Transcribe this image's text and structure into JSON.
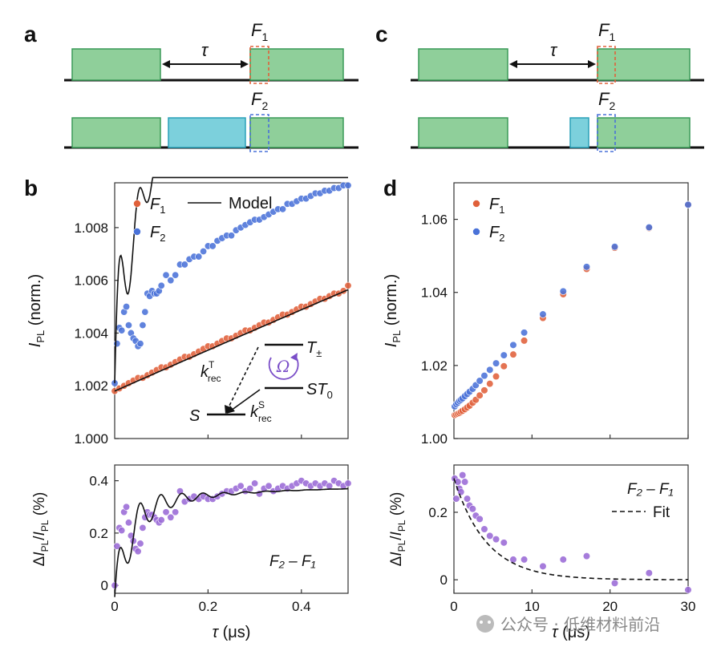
{
  "figure": {
    "panel_a": "a",
    "panel_b": "b",
    "panel_c": "c",
    "panel_d": "d",
    "watermark": "公众号 · 低维材料前沿"
  },
  "colors": {
    "laser_green": "#8fcf9a",
    "laser_green_edge": "#3a9a58",
    "mw_cyan": "#7cd0dc",
    "mw_cyan_edge": "#2aa0b8",
    "f1_red": "#e0603a",
    "f2_blue": "#4a72d8",
    "diff_purple": "#9a6ad6",
    "omega_purple": "#7a4ec8"
  },
  "schematic_a": {
    "tau_label": "τ",
    "f1_label": "F",
    "f1_sub": "1",
    "f2_label": "F",
    "f2_sub": "2"
  },
  "schematic_c": {
    "tau_label": "τ",
    "f1_label": "F",
    "f1_sub": "1",
    "f2_label": "F",
    "f2_sub": "2"
  },
  "inset_b": {
    "t_label": "T",
    "t_sub": "±",
    "st0_label": "ST",
    "st0_sub": "0",
    "s_label": "S",
    "omega_label": "Ω",
    "krec_t": "k",
    "krec_t_sup": "T",
    "krec_t_sub": "rec",
    "krec_s": "k",
    "krec_s_sup": "S",
    "krec_s_sub": "rec"
  },
  "chart_data": [
    {
      "id": "b_top",
      "type": "scatter",
      "ylabel_main": "I",
      "ylabel_sub": "PL",
      "ylabel_rest": " (norm.)",
      "xlim": [
        0,
        0.5
      ],
      "ylim": [
        1.0,
        1.0097
      ],
      "yticks": [
        1.0,
        1.002,
        1.004,
        1.006,
        1.008
      ],
      "ytick_labels": [
        "1.000",
        "1.002",
        "1.004",
        "1.006",
        "1.008"
      ],
      "legend": [
        {
          "name": "F",
          "sub": "1",
          "kind": "marker",
          "color": "#e0603a"
        },
        {
          "name": "F",
          "sub": "2",
          "kind": "marker",
          "color": "#4a72d8"
        },
        {
          "name": "Model",
          "kind": "line",
          "color": "#111111"
        }
      ],
      "series": [
        {
          "name": "F1",
          "color": "#e0603a",
          "x": [
            0.0,
            0.01,
            0.02,
            0.03,
            0.04,
            0.05,
            0.06,
            0.07,
            0.08,
            0.09,
            0.1,
            0.11,
            0.12,
            0.13,
            0.14,
            0.15,
            0.16,
            0.17,
            0.18,
            0.19,
            0.2,
            0.21,
            0.22,
            0.23,
            0.24,
            0.25,
            0.26,
            0.27,
            0.28,
            0.29,
            0.3,
            0.31,
            0.32,
            0.33,
            0.34,
            0.35,
            0.36,
            0.37,
            0.38,
            0.39,
            0.4,
            0.41,
            0.42,
            0.43,
            0.44,
            0.45,
            0.46,
            0.47,
            0.48,
            0.49,
            0.5
          ],
          "y": [
            1.0018,
            1.0019,
            1.002,
            1.0021,
            1.0022,
            1.0023,
            1.0023,
            1.0024,
            1.0025,
            1.0026,
            1.0027,
            1.0027,
            1.0028,
            1.0029,
            1.003,
            1.0031,
            1.0031,
            1.0032,
            1.0033,
            1.0034,
            1.0035,
            1.0035,
            1.0036,
            1.0037,
            1.0038,
            1.0038,
            1.0039,
            1.004,
            1.0041,
            1.0041,
            1.0042,
            1.0043,
            1.0044,
            1.0044,
            1.0045,
            1.0046,
            1.0047,
            1.0047,
            1.0048,
            1.0049,
            1.005,
            1.005,
            1.0051,
            1.0052,
            1.0053,
            1.0053,
            1.0054,
            1.0055,
            1.0055,
            1.0056,
            1.0058
          ]
        },
        {
          "name": "F2",
          "color": "#4a72d8",
          "x": [
            0.0,
            0.005,
            0.01,
            0.015,
            0.02,
            0.025,
            0.03,
            0.035,
            0.04,
            0.045,
            0.05,
            0.055,
            0.06,
            0.065,
            0.07,
            0.075,
            0.08,
            0.085,
            0.09,
            0.095,
            0.1,
            0.11,
            0.12,
            0.13,
            0.14,
            0.15,
            0.16,
            0.17,
            0.18,
            0.19,
            0.2,
            0.21,
            0.22,
            0.23,
            0.24,
            0.25,
            0.26,
            0.27,
            0.28,
            0.29,
            0.3,
            0.31,
            0.32,
            0.33,
            0.34,
            0.35,
            0.36,
            0.37,
            0.38,
            0.39,
            0.4,
            0.41,
            0.42,
            0.43,
            0.44,
            0.45,
            0.46,
            0.47,
            0.48,
            0.49,
            0.5
          ],
          "y": [
            1.0021,
            1.0036,
            1.0042,
            1.0041,
            1.0048,
            1.005,
            1.0043,
            1.004,
            1.0038,
            1.0037,
            1.0035,
            1.0036,
            1.0043,
            1.0048,
            1.0055,
            1.0054,
            1.0056,
            1.0055,
            1.0055,
            1.0056,
            1.0058,
            1.0062,
            1.006,
            1.0062,
            1.0066,
            1.0066,
            1.0068,
            1.0069,
            1.0069,
            1.0071,
            1.0073,
            1.0073,
            1.0075,
            1.0076,
            1.0077,
            1.0077,
            1.0079,
            1.008,
            1.0081,
            1.0082,
            1.0083,
            1.0083,
            1.0084,
            1.0085,
            1.0086,
            1.0087,
            1.0087,
            1.0089,
            1.0089,
            1.009,
            1.0091,
            1.0091,
            1.0092,
            1.0093,
            1.0093,
            1.0094,
            1.0094,
            1.0095,
            1.0095,
            1.0096,
            1.0096
          ]
        }
      ]
    },
    {
      "id": "b_bottom",
      "type": "scatter",
      "ylabel": "ΔI_PL/I_PL (%)",
      "xlabel_main": "τ",
      "xlabel_rest": " (μs)",
      "xlim": [
        0,
        0.5
      ],
      "ylim": [
        -0.03,
        0.46
      ],
      "xticks": [
        0,
        0.2,
        0.4
      ],
      "xtick_labels": [
        "0",
        "0.2",
        "0.4"
      ],
      "yticks": [
        0,
        0.2,
        0.4
      ],
      "ytick_labels": [
        "0",
        "0.2",
        "0.4"
      ],
      "annotation": "F₂ – F₁",
      "series": [
        {
          "name": "F2 - F1",
          "color": "#9a6ad6",
          "x": [
            0.0,
            0.005,
            0.01,
            0.015,
            0.02,
            0.025,
            0.03,
            0.035,
            0.04,
            0.045,
            0.05,
            0.055,
            0.06,
            0.065,
            0.07,
            0.075,
            0.08,
            0.085,
            0.09,
            0.095,
            0.1,
            0.11,
            0.12,
            0.13,
            0.14,
            0.15,
            0.16,
            0.17,
            0.18,
            0.19,
            0.2,
            0.21,
            0.22,
            0.23,
            0.24,
            0.25,
            0.26,
            0.27,
            0.28,
            0.29,
            0.3,
            0.31,
            0.32,
            0.33,
            0.34,
            0.35,
            0.36,
            0.37,
            0.38,
            0.39,
            0.4,
            0.41,
            0.42,
            0.43,
            0.44,
            0.45,
            0.46,
            0.47,
            0.48,
            0.49,
            0.5
          ],
          "y": [
            0.0,
            0.15,
            0.22,
            0.21,
            0.28,
            0.3,
            0.24,
            0.19,
            0.17,
            0.14,
            0.13,
            0.16,
            0.22,
            0.26,
            0.28,
            0.27,
            0.27,
            0.26,
            0.25,
            0.24,
            0.25,
            0.28,
            0.26,
            0.28,
            0.36,
            0.32,
            0.33,
            0.34,
            0.33,
            0.34,
            0.33,
            0.33,
            0.34,
            0.35,
            0.36,
            0.36,
            0.37,
            0.38,
            0.36,
            0.37,
            0.39,
            0.35,
            0.37,
            0.38,
            0.36,
            0.37,
            0.38,
            0.37,
            0.38,
            0.39,
            0.4,
            0.39,
            0.38,
            0.39,
            0.38,
            0.39,
            0.38,
            0.4,
            0.39,
            0.38,
            0.39
          ]
        }
      ]
    },
    {
      "id": "d_top",
      "type": "scatter",
      "ylabel_main": "I",
      "ylabel_sub": "PL",
      "ylabel_rest": " (norm.)",
      "xlim": [
        0,
        30
      ],
      "ylim": [
        1.0,
        1.07
      ],
      "yticks": [
        1.0,
        1.02,
        1.04,
        1.06
      ],
      "ytick_labels": [
        "1.00",
        "1.02",
        "1.04",
        "1.06"
      ],
      "legend": [
        {
          "name": "F",
          "sub": "1",
          "kind": "marker",
          "color": "#e0603a"
        },
        {
          "name": "F",
          "sub": "2",
          "kind": "marker",
          "color": "#4a72d8"
        }
      ],
      "series": [
        {
          "name": "F1",
          "color": "#e0603a",
          "x": [
            0.1,
            0.3,
            0.5,
            0.7,
            0.9,
            1.1,
            1.4,
            1.7,
            2.0,
            2.4,
            2.8,
            3.3,
            3.9,
            4.6,
            5.4,
            6.4,
            7.6,
            9.0,
            11.4,
            14.0,
            17.0,
            20.6,
            25.0,
            30.0
          ],
          "y": [
            1.0064,
            1.0066,
            1.0068,
            1.007,
            1.0073,
            1.0076,
            1.008,
            1.0085,
            1.009,
            1.0098,
            1.0106,
            1.0118,
            1.0132,
            1.015,
            1.017,
            1.0198,
            1.023,
            1.0268,
            1.033,
            1.0395,
            1.0464,
            1.0522,
            1.0576,
            1.064
          ]
        },
        {
          "name": "F2",
          "color": "#4a72d8",
          "x": [
            0.1,
            0.3,
            0.5,
            0.7,
            0.9,
            1.1,
            1.4,
            1.7,
            2.0,
            2.4,
            2.8,
            3.3,
            3.9,
            4.6,
            5.4,
            6.4,
            7.6,
            9.0,
            11.4,
            14.0,
            17.0,
            20.6,
            25.0,
            30.0
          ],
          "y": [
            1.0088,
            1.0094,
            1.0098,
            1.0103,
            1.0106,
            1.011,
            1.0116,
            1.0122,
            1.0128,
            1.0136,
            1.0146,
            1.0158,
            1.0172,
            1.0188,
            1.0206,
            1.0228,
            1.0256,
            1.029,
            1.034,
            1.0403,
            1.047,
            1.0525,
            1.0578,
            1.064
          ]
        }
      ]
    },
    {
      "id": "d_bottom",
      "type": "scatter",
      "ylabel": "ΔI_PL/I_PL (%)",
      "xlabel_main": "τ",
      "xlabel_rest": " (μs)",
      "xlim": [
        0,
        30
      ],
      "ylim": [
        -0.04,
        0.34
      ],
      "xticks": [
        0,
        10,
        20,
        30
      ],
      "xtick_labels": [
        "0",
        "10",
        "20",
        "30"
      ],
      "yticks": [
        0,
        0.2
      ],
      "ytick_labels": [
        "0",
        "0.2"
      ],
      "legend": [
        {
          "name": "F₂ – F₁",
          "kind": "text"
        },
        {
          "name": "Fit",
          "kind": "dashed"
        }
      ],
      "series": [
        {
          "name": "F2 - F1",
          "color": "#9a6ad6",
          "x": [
            0.1,
            0.3,
            0.5,
            0.7,
            0.9,
            1.1,
            1.4,
            1.7,
            2.0,
            2.4,
            2.8,
            3.3,
            3.9,
            4.6,
            5.4,
            6.4,
            7.6,
            9.0,
            11.4,
            14.0,
            17.0,
            20.6,
            25.0,
            30.0
          ],
          "y": [
            0.3,
            0.24,
            0.29,
            0.27,
            0.26,
            0.31,
            0.29,
            0.24,
            0.22,
            0.21,
            0.19,
            0.18,
            0.15,
            0.13,
            0.12,
            0.11,
            0.06,
            0.06,
            0.04,
            0.06,
            0.07,
            -0.01,
            0.02,
            -0.03
          ]
        },
        {
          "name": "Fit",
          "color": "#111111",
          "fit": {
            "amplitude": 0.3,
            "decay_us": 4.2
          }
        }
      ]
    }
  ]
}
